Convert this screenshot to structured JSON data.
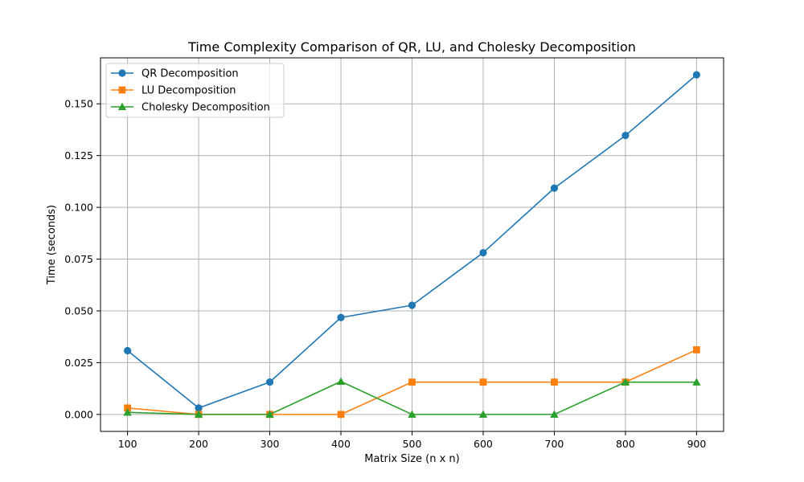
{
  "chart_data": {
    "type": "line",
    "title": "Time Complexity Comparison of QR, LU, and Cholesky Decomposition",
    "xlabel": "Matrix Size (n x n)",
    "ylabel": "Time (seconds)",
    "x": [
      100,
      200,
      300,
      400,
      500,
      600,
      700,
      800,
      900
    ],
    "xlim": [
      62,
      938
    ],
    "ylim": [
      -0.0082,
      0.1722
    ],
    "xticks": [
      100,
      200,
      300,
      400,
      500,
      600,
      700,
      800,
      900
    ],
    "yticks": [
      0.0,
      0.025,
      0.05,
      0.075,
      0.1,
      0.125,
      0.15
    ],
    "ytick_labels": [
      "0.000",
      "0.025",
      "0.050",
      "0.075",
      "0.100",
      "0.125",
      "0.150"
    ],
    "grid": true,
    "legend_position": "upper-left",
    "series": [
      {
        "name": "QR Decomposition",
        "color": "#1f77b4",
        "marker": "circle",
        "values": [
          0.0308,
          0.0031,
          0.0156,
          0.0468,
          0.0527,
          0.0781,
          0.1093,
          0.1347,
          0.164
        ]
      },
      {
        "name": "LU Decomposition",
        "color": "#ff7f0e",
        "marker": "square",
        "values": [
          0.0031,
          0.0,
          0.0,
          0.0,
          0.0156,
          0.0156,
          0.0156,
          0.0156,
          0.0312
        ]
      },
      {
        "name": "Cholesky Decomposition",
        "color": "#2ca02c",
        "marker": "triangle",
        "values": [
          0.001,
          0.0,
          0.0,
          0.0159,
          0.0,
          0.0,
          0.0,
          0.0156,
          0.0156
        ]
      }
    ]
  }
}
